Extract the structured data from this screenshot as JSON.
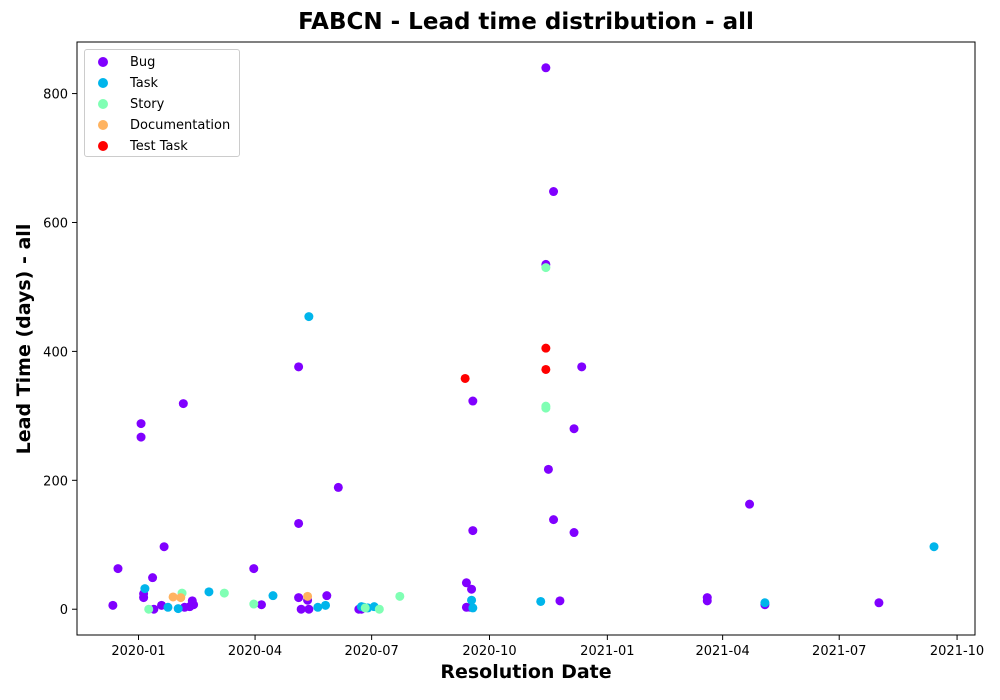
{
  "chart_data": {
    "type": "scatter",
    "title": "FABCN - Lead time distribution - all",
    "xlabel": "Resolution Date",
    "ylabel": "Lead Time (days) - all",
    "x_tick_labels": [
      "2020-01",
      "2020-04",
      "2020-07",
      "2020-10",
      "2021-01",
      "2021-04",
      "2021-07",
      "2021-10"
    ],
    "x_ticks": [
      "2020-01-01",
      "2020-04-01",
      "2020-07-01",
      "2020-10-01",
      "2021-01-01",
      "2021-04-01",
      "2021-07-01",
      "2021-10-01"
    ],
    "y_ticks": [
      0,
      200,
      400,
      600,
      800
    ],
    "xlim": [
      "2019-11-14",
      "2021-10-15"
    ],
    "ylim": [
      -40,
      880
    ],
    "grid": false,
    "legend_position": "top-left",
    "series": [
      {
        "name": "Bug",
        "color": "#8000ff",
        "points": [
          [
            "2019-12-12",
            6
          ],
          [
            "2019-12-16",
            63
          ],
          [
            "2020-01-03",
            288
          ],
          [
            "2020-01-03",
            267
          ],
          [
            "2020-01-05",
            18
          ],
          [
            "2020-01-05",
            24
          ],
          [
            "2020-01-12",
            49
          ],
          [
            "2020-01-13",
            0
          ],
          [
            "2020-01-19",
            6
          ],
          [
            "2020-01-21",
            97
          ],
          [
            "2020-02-05",
            319
          ],
          [
            "2020-02-06",
            3
          ],
          [
            "2020-02-10",
            4
          ],
          [
            "2020-02-12",
            13
          ],
          [
            "2020-02-13",
            7
          ],
          [
            "2020-03-31",
            63
          ],
          [
            "2020-04-06",
            7
          ],
          [
            "2020-05-05",
            376
          ],
          [
            "2020-05-05",
            18
          ],
          [
            "2020-05-05",
            133
          ],
          [
            "2020-05-07",
            0
          ],
          [
            "2020-05-12",
            14
          ],
          [
            "2020-05-13",
            0
          ],
          [
            "2020-05-27",
            21
          ],
          [
            "2020-06-05",
            189
          ],
          [
            "2020-06-21",
            0
          ],
          [
            "2020-06-23",
            0
          ],
          [
            "2020-09-13",
            41
          ],
          [
            "2020-09-13",
            3
          ],
          [
            "2020-09-16",
            3
          ],
          [
            "2020-09-17",
            31
          ],
          [
            "2020-09-18",
            323
          ],
          [
            "2020-09-18",
            122
          ],
          [
            "2020-11-14",
            840
          ],
          [
            "2020-11-14",
            535
          ],
          [
            "2020-11-16",
            217
          ],
          [
            "2020-11-20",
            648
          ],
          [
            "2020-11-20",
            139
          ],
          [
            "2020-11-25",
            13
          ],
          [
            "2020-12-06",
            280
          ],
          [
            "2020-12-06",
            119
          ],
          [
            "2020-12-12",
            376
          ],
          [
            "2021-03-20",
            13
          ],
          [
            "2021-03-20",
            18
          ],
          [
            "2021-04-22",
            163
          ],
          [
            "2021-05-04",
            7
          ],
          [
            "2021-08-01",
            10
          ]
        ]
      },
      {
        "name": "Task",
        "color": "#00b5eb",
        "points": [
          [
            "2020-01-06",
            32
          ],
          [
            "2020-01-24",
            3
          ],
          [
            "2020-02-01",
            1
          ],
          [
            "2020-02-25",
            27
          ],
          [
            "2020-04-15",
            21
          ],
          [
            "2020-05-13",
            454
          ],
          [
            "2020-05-20",
            3
          ],
          [
            "2020-05-26",
            6
          ],
          [
            "2020-06-23",
            4
          ],
          [
            "2020-06-25",
            3
          ],
          [
            "2020-06-28",
            2
          ],
          [
            "2020-07-03",
            4
          ],
          [
            "2020-09-17",
            14
          ],
          [
            "2020-09-18",
            2
          ],
          [
            "2020-11-10",
            12
          ],
          [
            "2021-05-04",
            10
          ],
          [
            "2021-09-13",
            97
          ]
        ]
      },
      {
        "name": "Story",
        "color": "#80ffb4",
        "points": [
          [
            "2020-01-09",
            0
          ],
          [
            "2020-02-04",
            25
          ],
          [
            "2020-03-08",
            25
          ],
          [
            "2020-03-31",
            8
          ],
          [
            "2020-06-26",
            2
          ],
          [
            "2020-07-07",
            0
          ],
          [
            "2020-07-23",
            20
          ],
          [
            "2020-11-14",
            530
          ],
          [
            "2020-11-14",
            315
          ],
          [
            "2020-11-14",
            312
          ]
        ]
      },
      {
        "name": "Documentation",
        "color": "#ffb360",
        "points": [
          [
            "2020-01-28",
            19
          ],
          [
            "2020-02-03",
            18
          ],
          [
            "2020-05-12",
            20
          ]
        ]
      },
      {
        "name": "Test Task",
        "color": "#ff0000",
        "points": [
          [
            "2020-09-12",
            358
          ],
          [
            "2020-11-14",
            405
          ],
          [
            "2020-11-14",
            372
          ]
        ]
      }
    ]
  }
}
